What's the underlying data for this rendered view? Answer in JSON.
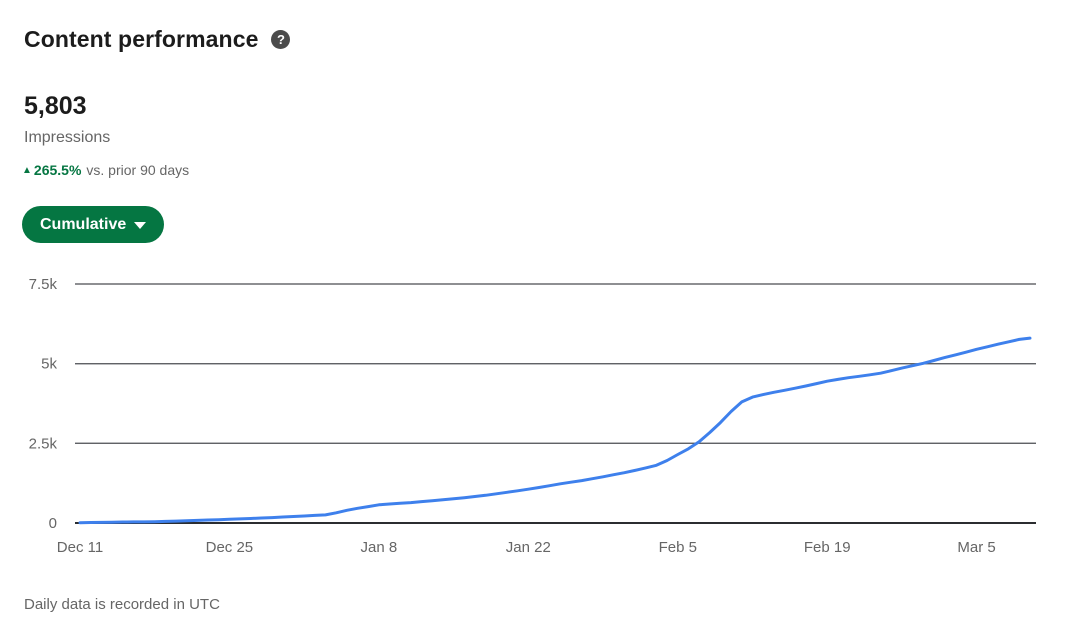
{
  "header": {
    "title": "Content performance",
    "help_icon_glyph": "?"
  },
  "stats": {
    "value": "5,803",
    "label": "Impressions",
    "trend_arrow": "▲",
    "trend_percent": "265.5%",
    "trend_comparison": "vs. prior 90 days"
  },
  "controls": {
    "view_dropdown_label": "Cumulative"
  },
  "footer": {
    "note": "Daily data is recorded in UTC"
  },
  "colors": {
    "accent_green": "#057642",
    "line_blue": "#3e80ec",
    "grid_line": "#4a4c50",
    "axis_line": "#2b2d30",
    "muted_text": "#666666"
  },
  "chart_data": {
    "type": "line",
    "title": "Content performance",
    "mode": "Cumulative",
    "ylabel": "Impressions",
    "final_value": 5803,
    "n_points": 90,
    "x_tick_labels": [
      "Dec 11",
      "Dec 25",
      "Jan 8",
      "Jan 22",
      "Feb 5",
      "Feb 19",
      "Mar 5"
    ],
    "x_tick_day_indices": [
      0,
      14,
      28,
      42,
      56,
      70,
      84
    ],
    "y_ticks": [
      {
        "value": 0,
        "label": "0"
      },
      {
        "value": 2500,
        "label": "2.5k"
      },
      {
        "value": 5000,
        "label": "5k"
      },
      {
        "value": 7500,
        "label": "7.5k"
      }
    ],
    "ylim": [
      0,
      7900
    ],
    "grid": true,
    "legend": "none",
    "series": [
      {
        "name": "Impressions (cumulative)",
        "values": [
          10,
          15,
          20,
          25,
          30,
          33,
          36,
          40,
          50,
          60,
          72,
          82,
          93,
          104,
          115,
          128,
          142,
          156,
          170,
          187,
          203,
          220,
          237,
          255,
          320,
          400,
          460,
          515,
          570,
          595,
          618,
          640,
          670,
          700,
          730,
          760,
          795,
          832,
          870,
          915,
          962,
          1010,
          1060,
          1115,
          1172,
          1230,
          1280,
          1330,
          1390,
          1450,
          1515,
          1580,
          1650,
          1730,
          1810,
          1960,
          2150,
          2330,
          2550,
          2840,
          3150,
          3500,
          3800,
          3950,
          4030,
          4100,
          4165,
          4230,
          4300,
          4375,
          4450,
          4505,
          4560,
          4605,
          4650,
          4700,
          4780,
          4860,
          4935,
          5010,
          5100,
          5190,
          5275,
          5360,
          5450,
          5530,
          5610,
          5685,
          5760,
          5803
        ]
      }
    ]
  }
}
